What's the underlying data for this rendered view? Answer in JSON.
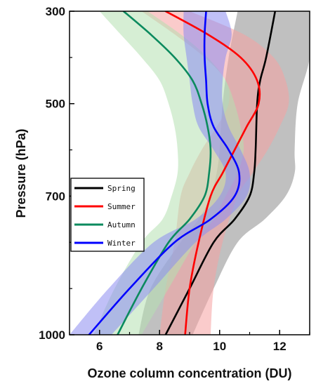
{
  "chart_data": {
    "type": "line",
    "title": "",
    "xlabel": "Ozone column concentration (DU)",
    "ylabel": "Pressure (hPa)",
    "xlim": [
      5,
      13
    ],
    "ylim": [
      300,
      1000
    ],
    "y_inverted": true,
    "x_ticks": [
      6,
      8,
      10,
      12
    ],
    "x_tick_labels": [
      "6",
      "8",
      "10",
      "12"
    ],
    "y_ticks": [
      300,
      500,
      700,
      1000
    ],
    "y_tick_labels": [
      "300",
      "500",
      "700",
      "1000"
    ],
    "y_minor_ticks": [
      400,
      600,
      800,
      900
    ],
    "grid": false,
    "legend_position": "center-left",
    "series": [
      {
        "name": "Spring",
        "color": "#000000",
        "band_color": "#8c8c8c",
        "points": [
          [
            11.85,
            300
          ],
          [
            11.55,
            400
          ],
          [
            11.35,
            450
          ],
          [
            11.25,
            500
          ],
          [
            11.2,
            600
          ],
          [
            11.15,
            650
          ],
          [
            11.0,
            700
          ],
          [
            10.5,
            750
          ],
          [
            9.8,
            800
          ],
          [
            9.0,
            900
          ],
          [
            8.2,
            1000
          ]
        ],
        "upper": [
          [
            13.0,
            300
          ],
          [
            13.0,
            400
          ],
          [
            12.6,
            500
          ],
          [
            12.5,
            600
          ],
          [
            12.5,
            650
          ],
          [
            12.2,
            700
          ],
          [
            11.5,
            750
          ],
          [
            10.6,
            800
          ],
          [
            9.8,
            900
          ],
          [
            9.1,
            1000
          ]
        ],
        "lower": [
          [
            10.6,
            300
          ],
          [
            10.3,
            400
          ],
          [
            10.1,
            500
          ],
          [
            10.0,
            600
          ],
          [
            9.9,
            650
          ],
          [
            9.7,
            700
          ],
          [
            9.3,
            750
          ],
          [
            8.7,
            800
          ],
          [
            7.7,
            900
          ],
          [
            7.3,
            1000
          ]
        ]
      },
      {
        "name": "Summer",
        "color": "#ff0000",
        "band_color": "#f5a0a0",
        "points": [
          [
            8.2,
            300
          ],
          [
            9.6,
            350
          ],
          [
            10.7,
            400
          ],
          [
            11.25,
            450
          ],
          [
            11.3,
            500
          ],
          [
            10.9,
            550
          ],
          [
            10.5,
            600
          ],
          [
            10.1,
            650
          ],
          [
            9.7,
            700
          ],
          [
            9.3,
            800
          ],
          [
            9.0,
            900
          ],
          [
            8.85,
            1000
          ]
        ],
        "upper": [
          [
            9.0,
            300
          ],
          [
            10.8,
            350
          ],
          [
            11.8,
            400
          ],
          [
            12.2,
            450
          ],
          [
            12.3,
            500
          ],
          [
            12.0,
            550
          ],
          [
            11.6,
            600
          ],
          [
            11.1,
            650
          ],
          [
            10.6,
            700
          ],
          [
            10.1,
            800
          ],
          [
            9.8,
            900
          ],
          [
            9.7,
            1000
          ]
        ],
        "lower": [
          [
            7.4,
            300
          ],
          [
            8.5,
            350
          ],
          [
            9.5,
            400
          ],
          [
            10.2,
            450
          ],
          [
            10.3,
            500
          ],
          [
            9.9,
            550
          ],
          [
            9.4,
            600
          ],
          [
            9.0,
            650
          ],
          [
            8.7,
            700
          ],
          [
            8.5,
            800
          ],
          [
            8.2,
            900
          ],
          [
            8.0,
            1000
          ]
        ]
      },
      {
        "name": "Autumn",
        "color": "#0b8a5e",
        "band_color": "#b5e0b0",
        "points": [
          [
            6.8,
            300
          ],
          [
            7.7,
            350
          ],
          [
            8.5,
            400
          ],
          [
            9.1,
            450
          ],
          [
            9.4,
            500
          ],
          [
            9.6,
            550
          ],
          [
            9.7,
            600
          ],
          [
            9.65,
            650
          ],
          [
            9.5,
            700
          ],
          [
            9.0,
            750
          ],
          [
            8.3,
            800
          ],
          [
            7.4,
            900
          ],
          [
            6.6,
            1000
          ]
        ],
        "upper": [
          [
            7.6,
            300
          ],
          [
            8.7,
            350
          ],
          [
            9.6,
            400
          ],
          [
            10.2,
            450
          ],
          [
            10.5,
            500
          ],
          [
            10.7,
            550
          ],
          [
            10.8,
            600
          ],
          [
            10.6,
            650
          ],
          [
            10.2,
            700
          ],
          [
            9.8,
            750
          ],
          [
            9.2,
            800
          ],
          [
            8.3,
            900
          ],
          [
            7.4,
            1000
          ]
        ],
        "lower": [
          [
            6.0,
            300
          ],
          [
            6.7,
            350
          ],
          [
            7.4,
            400
          ],
          [
            8.0,
            450
          ],
          [
            8.3,
            500
          ],
          [
            8.5,
            550
          ],
          [
            8.6,
            600
          ],
          [
            8.6,
            650
          ],
          [
            8.4,
            700
          ],
          [
            8.1,
            750
          ],
          [
            7.4,
            800
          ],
          [
            6.5,
            900
          ],
          [
            5.8,
            1000
          ]
        ]
      },
      {
        "name": "Winter",
        "color": "#0000ff",
        "band_color": "#8c8cf0",
        "points": [
          [
            9.55,
            300
          ],
          [
            9.5,
            350
          ],
          [
            9.5,
            400
          ],
          [
            9.55,
            450
          ],
          [
            9.6,
            500
          ],
          [
            9.8,
            550
          ],
          [
            10.3,
            600
          ],
          [
            10.65,
            650
          ],
          [
            10.5,
            700
          ],
          [
            9.7,
            750
          ],
          [
            8.5,
            800
          ],
          [
            7.0,
            900
          ],
          [
            5.65,
            1000
          ]
        ],
        "upper": [
          [
            10.2,
            300
          ],
          [
            10.4,
            350
          ],
          [
            10.2,
            400
          ],
          [
            10.1,
            450
          ],
          [
            10.1,
            500
          ],
          [
            10.3,
            550
          ],
          [
            10.7,
            600
          ],
          [
            11.0,
            650
          ],
          [
            10.9,
            700
          ],
          [
            10.2,
            750
          ],
          [
            9.2,
            800
          ],
          [
            7.8,
            900
          ],
          [
            6.4,
            1000
          ]
        ],
        "lower": [
          [
            8.8,
            300
          ],
          [
            8.8,
            350
          ],
          [
            8.9,
            400
          ],
          [
            9.0,
            450
          ],
          [
            9.1,
            500
          ],
          [
            9.3,
            550
          ],
          [
            9.8,
            600
          ],
          [
            10.2,
            650
          ],
          [
            10.0,
            700
          ],
          [
            9.2,
            750
          ],
          [
            7.8,
            800
          ],
          [
            6.3,
            900
          ],
          [
            5.0,
            1000
          ]
        ]
      }
    ]
  }
}
